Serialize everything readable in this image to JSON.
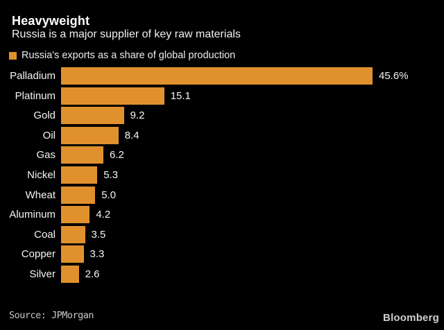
{
  "header": {
    "title": "Heavyweight",
    "subtitle": "Russia is a major supplier of key raw materials"
  },
  "legend": {
    "label": "Russia's exports as a share of global production",
    "swatch_color": "#E0912E"
  },
  "chart_data": {
    "type": "bar",
    "orientation": "horizontal",
    "title": "Heavyweight",
    "subtitle": "Russia is a major supplier of key raw materials",
    "series_name": "Russia's exports as a share of global production",
    "categories": [
      "Palladium",
      "Platinum",
      "Gold",
      "Oil",
      "Gas",
      "Nickel",
      "Wheat",
      "Aluminum",
      "Coal",
      "Copper",
      "Silver"
    ],
    "values": [
      45.6,
      15.1,
      9.2,
      8.4,
      6.2,
      5.3,
      5.0,
      4.2,
      3.5,
      3.3,
      2.6
    ],
    "value_labels": [
      "45.6%",
      "15.1",
      "9.2",
      "8.4",
      "6.2",
      "5.3",
      "5.0",
      "4.2",
      "3.5",
      "3.3",
      "2.6"
    ],
    "unit": "%",
    "xlim": [
      0,
      45.6
    ],
    "grid": false,
    "legend_position": "top-left",
    "bar_color": "#E0912E"
  },
  "footer": {
    "source": "Source: JPMorgan",
    "brand": "Bloomberg"
  },
  "colors": {
    "background": "#000000",
    "bar": "#E0912E",
    "title_text": "#FFFFFF",
    "body_text": "#F2F2F2",
    "muted_text": "#C9C9C9"
  }
}
